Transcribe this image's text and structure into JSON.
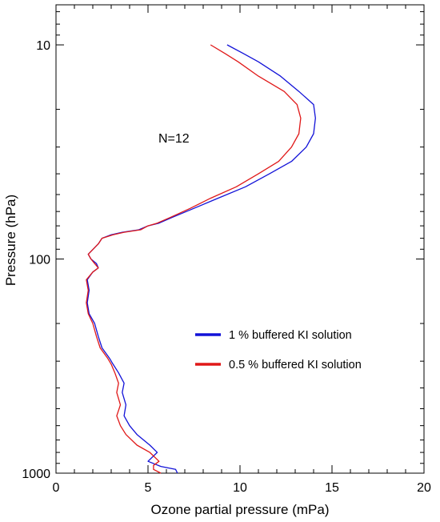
{
  "chart_data": {
    "type": "line",
    "xlabel": "Ozone partial pressure  (mPa)",
    "ylabel": "Pressure (hPa)",
    "xlim": [
      0,
      20
    ],
    "ylim": [
      1000,
      6.5
    ],
    "y_scale": "log",
    "y_inverted": true,
    "x_ticks": [
      "0",
      "5",
      "10",
      "15",
      "20"
    ],
    "y_ticks": [
      "10",
      "100",
      "1000"
    ],
    "grid": false,
    "legend_position": "lower-right",
    "annotation": "N=12",
    "colors": {
      "series1": "#1212d8",
      "series2": "#e01818"
    },
    "series": [
      {
        "name": "1 % buffered KI solution",
        "color": "#1212d8",
        "x": [
          6.6,
          6.5,
          5.7,
          5.0,
          5.5,
          5.1,
          4.4,
          4.0,
          3.7,
          3.8,
          3.6,
          3.7,
          3.4,
          3.1,
          2.9,
          2.5,
          2.3,
          2.1,
          1.8,
          1.7,
          1.8,
          1.7,
          2.0,
          2.3,
          2.2,
          1.9,
          1.75,
          2.3,
          2.5,
          3.0,
          3.6,
          4.5,
          5.0,
          5.6,
          6.3,
          7.5,
          8.8,
          10.3,
          11.6,
          12.8,
          13.6,
          14.0,
          14.1,
          14.0,
          13.2,
          12.2,
          11.0,
          10.2,
          9.3
        ],
        "y": [
          1000,
          960,
          930,
          880,
          800,
          740,
          660,
          600,
          540,
          480,
          420,
          380,
          340,
          310,
          290,
          260,
          230,
          200,
          180,
          160,
          140,
          125,
          115,
          110,
          105,
          100,
          95,
          85,
          80,
          77,
          75,
          73,
          70,
          68,
          64,
          58,
          52,
          46,
          40,
          35,
          30,
          26,
          22,
          19,
          16.5,
          14,
          12,
          11,
          10
        ]
      },
      {
        "name": "0.5 % buffered KI solution",
        "color": "#e01818",
        "x": [
          5.7,
          5.3,
          5.3,
          5.6,
          5.1,
          4.4,
          3.8,
          3.5,
          3.3,
          3.5,
          3.3,
          3.4,
          3.2,
          3.0,
          2.8,
          2.4,
          2.2,
          2.0,
          1.75,
          1.65,
          1.75,
          1.65,
          2.0,
          2.3,
          2.1,
          1.9,
          1.75,
          2.3,
          2.5,
          3.1,
          3.7,
          4.6,
          5.0,
          5.5,
          6.2,
          7.3,
          8.4,
          9.8,
          11.0,
          12.1,
          12.8,
          13.2,
          13.3,
          13.1,
          12.4,
          11.0,
          9.9,
          9.2,
          8.4
        ],
        "y": [
          1000,
          960,
          920,
          880,
          800,
          740,
          660,
          600,
          540,
          480,
          420,
          380,
          340,
          310,
          290,
          260,
          230,
          200,
          180,
          160,
          140,
          125,
          115,
          110,
          105,
          100,
          95,
          85,
          80,
          77,
          75,
          73,
          70,
          68,
          64,
          58,
          52,
          46,
          40,
          35,
          30,
          26,
          22,
          19,
          16.5,
          14,
          12,
          11,
          10
        ]
      }
    ]
  }
}
